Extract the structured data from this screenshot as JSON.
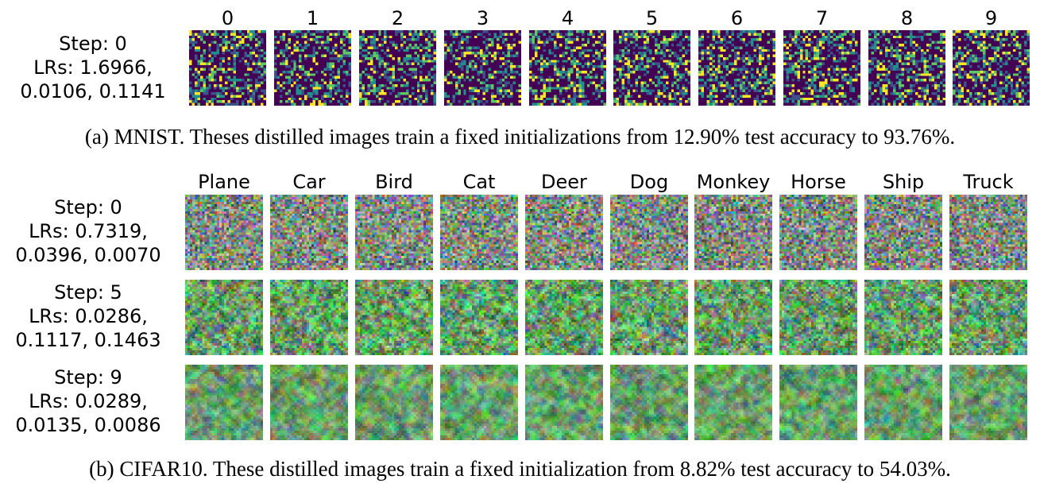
{
  "mnist": {
    "classes": [
      "0",
      "1",
      "2",
      "3",
      "4",
      "5",
      "6",
      "7",
      "8",
      "9"
    ],
    "rows": [
      {
        "step": "Step: 0",
        "lrs_line1": "LRs: 1.6966,",
        "lrs_line2": "0.0106, 0.1141"
      }
    ],
    "caption": "(a) MNIST. Theses distilled images train a fixed initializations from 12.90% test accuracy to 93.76%.",
    "palette": [
      "#440154",
      "#3b528b",
      "#21908d",
      "#5dc863",
      "#fde725"
    ]
  },
  "cifar": {
    "classes": [
      "Plane",
      "Car",
      "Bird",
      "Cat",
      "Deer",
      "Dog",
      "Monkey",
      "Horse",
      "Ship",
      "Truck"
    ],
    "rows": [
      {
        "step": "Step: 0",
        "lrs_line1": "LRs: 0.7319,",
        "lrs_line2": "0.0396, 0.0070"
      },
      {
        "step": "Step: 5",
        "lrs_line1": "LRs: 0.0286,",
        "lrs_line2": "0.1117, 0.1463"
      },
      {
        "step": "Step: 9",
        "lrs_line1": "LRs: 0.0289,",
        "lrs_line2": "0.0135, 0.0086"
      }
    ],
    "caption": "(b) CIFAR10. These distilled images train a fixed initialization from 8.82% test accuracy to 54.03%."
  }
}
